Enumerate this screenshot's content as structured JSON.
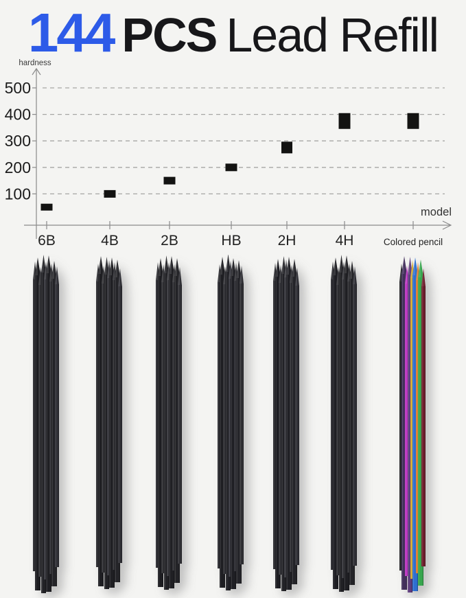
{
  "page": {
    "background": "#f4f4f2"
  },
  "title": {
    "count": "144",
    "count_color": "#2d5be8",
    "unit": "PCS",
    "product": "Lead Refill"
  },
  "chart_data": {
    "type": "scatter",
    "title": "",
    "xlabel": "model",
    "ylabel": "hardness",
    "categories": [
      "6B",
      "4B",
      "2B",
      "HB",
      "2H",
      "4H",
      "Colored pencil"
    ],
    "values": [
      50,
      100,
      150,
      200,
      275,
      375,
      375
    ],
    "yticks": [
      100,
      200,
      300,
      400,
      500
    ],
    "ylim": [
      0,
      560
    ],
    "grid": "horizontal-dashed",
    "legend": "none",
    "marker": "black-square",
    "marker_color": "#131312",
    "marker_note": "square markers grow larger toward harder leads",
    "axis_color": "#8a8a8a",
    "gridline_color": "#a6a6a4",
    "tick_label_color": "#1c1c1c"
  },
  "bundles": [
    {
      "label": "6B",
      "type": "graphite-lead-bundle",
      "colors": [
        "#26262a",
        "#1d1d21",
        "#2e2e32",
        "#222226",
        "#34343a",
        "#1f1f23",
        "#2b2b2f",
        "#242428",
        "#303036"
      ]
    },
    {
      "label": "4B",
      "type": "graphite-lead-bundle",
      "colors": [
        "#25252a",
        "#1e1e22",
        "#2d2d31",
        "#212125",
        "#333339",
        "#1f1f23",
        "#2a2a2e",
        "#242428",
        "#2f2f35"
      ]
    },
    {
      "label": "2B",
      "type": "graphite-lead-bundle",
      "colors": [
        "#26262b",
        "#1d1d21",
        "#2e2e32",
        "#222226",
        "#343439",
        "#202024",
        "#2b2b2f",
        "#232327",
        "#303035"
      ]
    },
    {
      "label": "HB",
      "type": "graphite-lead-bundle",
      "colors": [
        "#25252a",
        "#1e1e22",
        "#2d2d32",
        "#212126",
        "#33333a",
        "#1f1f24",
        "#2a2a2f",
        "#242429",
        "#2f2f34"
      ]
    },
    {
      "label": "2H",
      "type": "graphite-lead-bundle",
      "colors": [
        "#26262a",
        "#1d1d22",
        "#2e2e33",
        "#222227",
        "#34343a",
        "#202025",
        "#2b2b30",
        "#232328",
        "#303036"
      ]
    },
    {
      "label": "4H",
      "type": "graphite-lead-bundle",
      "colors": [
        "#25252a",
        "#1e1e23",
        "#2d2d31",
        "#212125",
        "#333338",
        "#1f1f23",
        "#2a2a2e",
        "#242428",
        "#2f2f35"
      ]
    },
    {
      "label": "Colored pencil",
      "type": "colored-pencil-bundle",
      "colors": [
        "#1b1b1f",
        "#43305c",
        "#bb35c0",
        "#5e3d7d",
        "#d2a72e",
        "#2e6fd0",
        "#dd7b2b",
        "#38a64e",
        "#6e1f2d"
      ]
    }
  ]
}
